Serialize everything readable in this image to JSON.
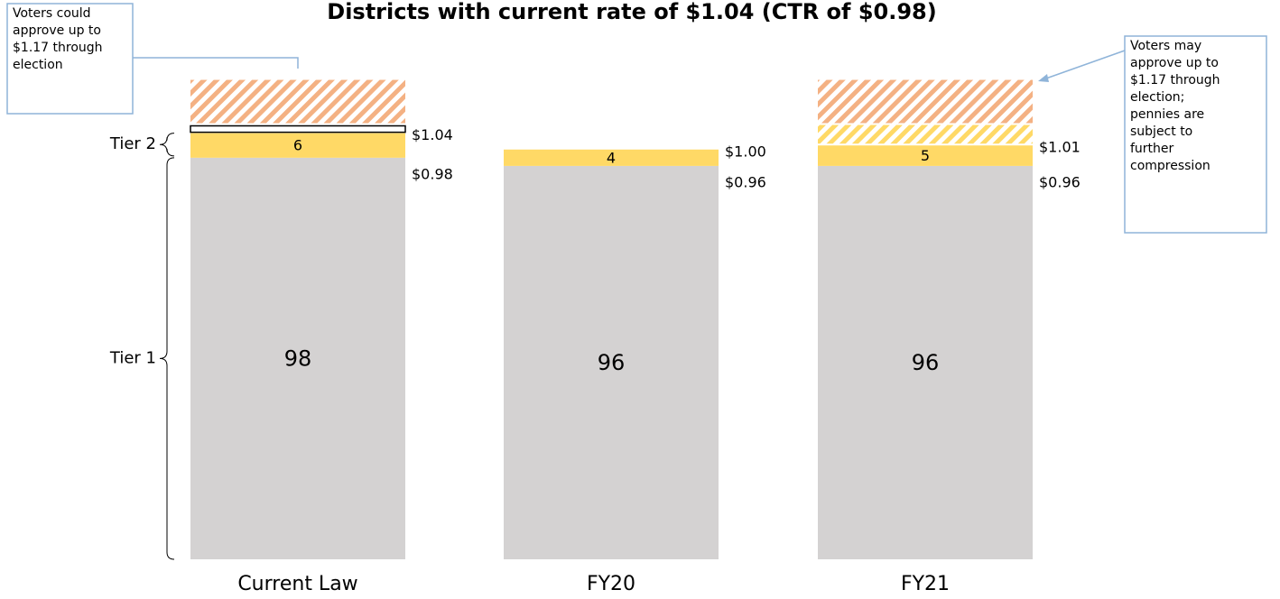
{
  "chart_data": {
    "type": "bar",
    "stacked": true,
    "title": "Districts with current rate of $1.04 (CTR of $0.98)",
    "categories": [
      "Current Law",
      "FY20",
      "FY21"
    ],
    "ylim": [
      0,
      118
    ],
    "series": [
      {
        "name": "Tier 1",
        "color": "#d4d2d2",
        "values": [
          98,
          96,
          96
        ],
        "show_values": true
      },
      {
        "name": "Tier 2",
        "color": "#ffd966",
        "values": [
          6,
          4,
          5
        ],
        "show_values": true
      },
      {
        "color": "#ffffff",
        "outline": "#000000",
        "values": [
          2,
          null,
          null
        ]
      },
      {
        "color": "#ffd966",
        "pattern": "hatch",
        "values": [
          null,
          null,
          5
        ]
      },
      {
        "color": "#f4b183",
        "pattern": "hatch",
        "values": [
          11,
          null,
          11
        ]
      }
    ],
    "rate_labels": [
      [
        "$1.04",
        "$0.98"
      ],
      [
        "$1.00",
        "$0.96"
      ],
      [
        "$1.01",
        "$0.96"
      ]
    ],
    "annotations": [
      [
        "Voters could",
        "approve up to",
        "$1.17 through",
        "election"
      ],
      [
        "Voters may",
        "approve up to",
        "$1.17 through",
        "election;",
        "pennies are",
        "subject to",
        "further",
        "compression"
      ]
    ]
  }
}
